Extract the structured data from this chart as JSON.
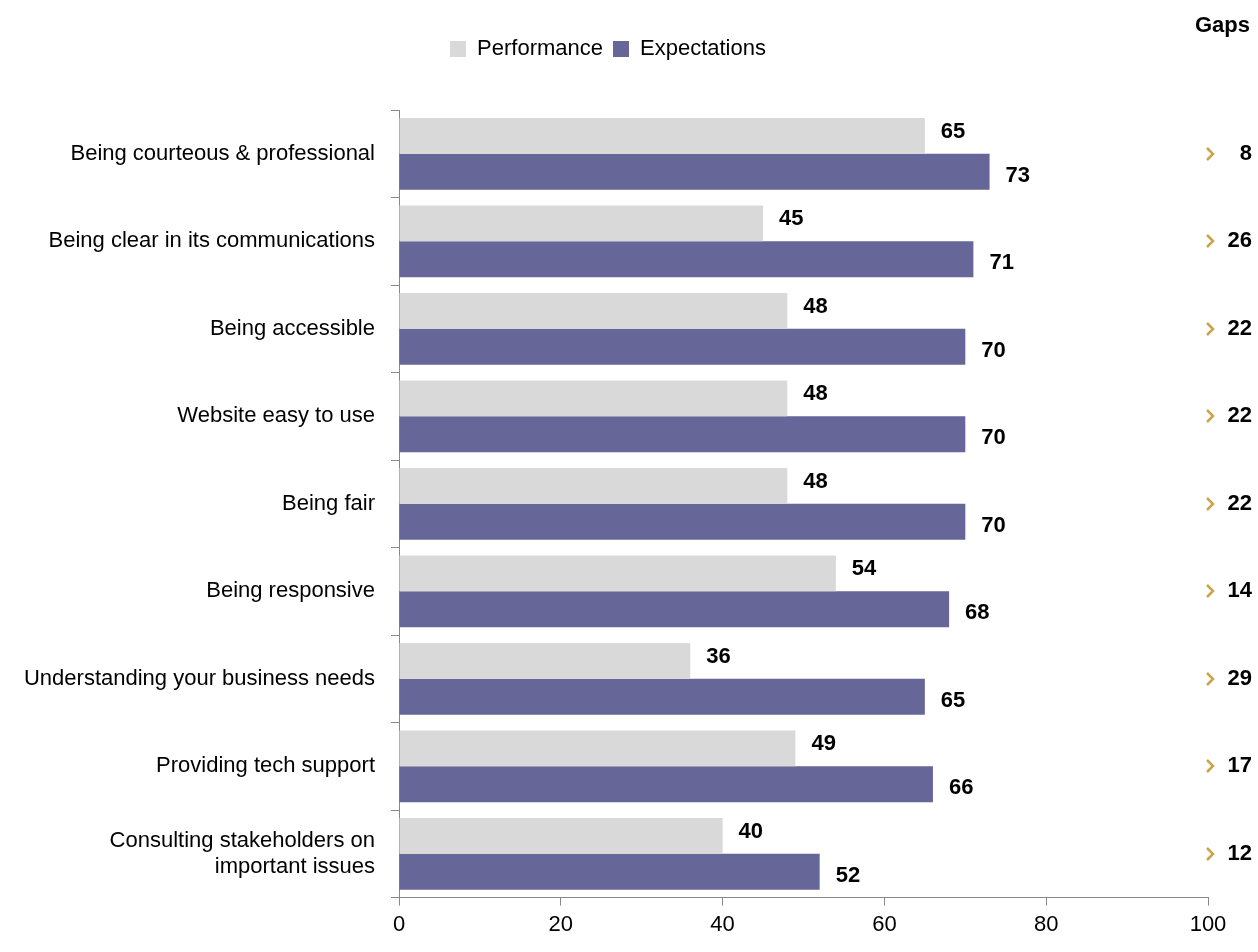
{
  "chart_data": {
    "type": "bar",
    "orientation": "horizontal",
    "categories": [
      "Being courteous & professional",
      "Being clear in its communications",
      "Being accessible",
      "Website easy to use",
      "Being fair",
      "Being responsive",
      "Understanding your business needs",
      "Providing tech support",
      "Consulting stakeholders on important issues"
    ],
    "series": [
      {
        "name": "Performance",
        "color": "#d9d9d9",
        "values": [
          65,
          45,
          48,
          48,
          48,
          54,
          36,
          49,
          40
        ]
      },
      {
        "name": "Expectations",
        "color": "#666699",
        "values": [
          73,
          71,
          70,
          70,
          70,
          68,
          65,
          66,
          52
        ]
      }
    ],
    "xlim": [
      0,
      100
    ],
    "xticks": [
      0,
      20,
      40,
      60,
      80,
      100
    ],
    "grid": false,
    "legend": "top",
    "data_labels": true,
    "annotations": [
      "Gaps",
      "8",
      "26",
      "22",
      "22",
      "22",
      "14",
      "29",
      "17",
      "12"
    ]
  }
}
